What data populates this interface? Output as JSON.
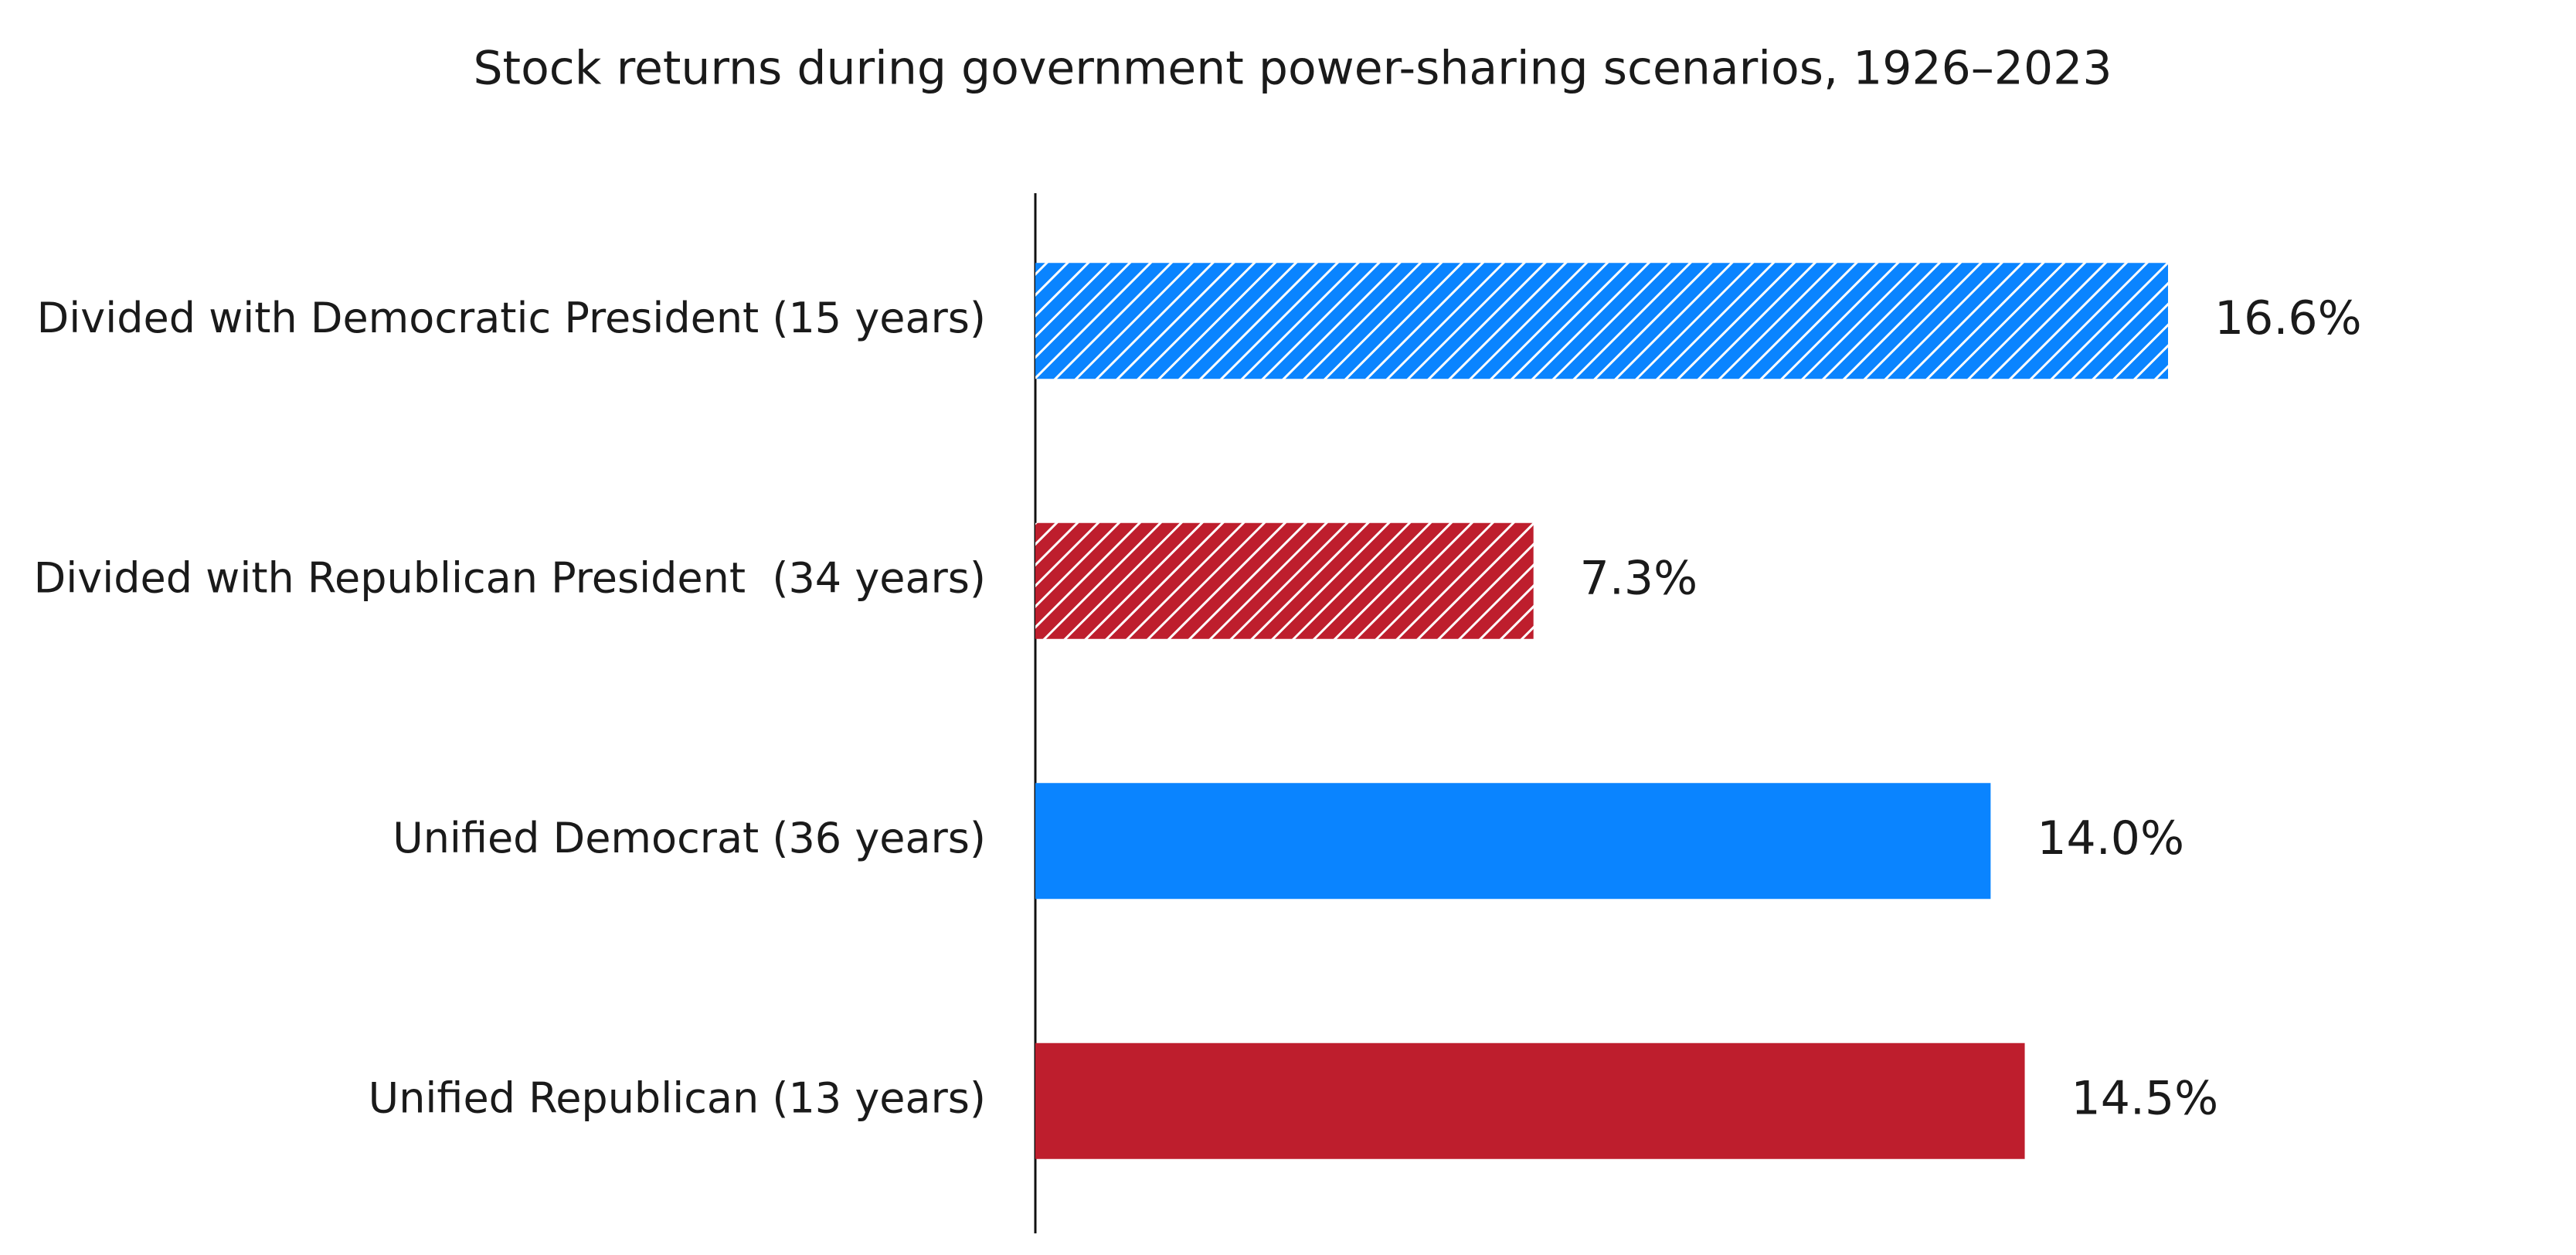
{
  "chart_data": {
    "type": "bar",
    "orientation": "horizontal",
    "title": "Stock returns during government power-sharing scenarios, 1926–2023",
    "categories": [
      "Divided with Democratic President (15 years)",
      "Divided with Republican President  (34 years)",
      "Unified Democrat (36 years)",
      "Unified Republican (13 years)"
    ],
    "values": [
      16.6,
      7.3,
      14.0,
      14.5
    ],
    "value_labels": [
      "16.6%",
      "7.3%",
      "14.0%",
      "14.5%"
    ],
    "colors": [
      "#0a84ff",
      "#be1e2d",
      "#0a84ff",
      "#be1e2d"
    ],
    "hatch": [
      true,
      true,
      false,
      false
    ]
  }
}
